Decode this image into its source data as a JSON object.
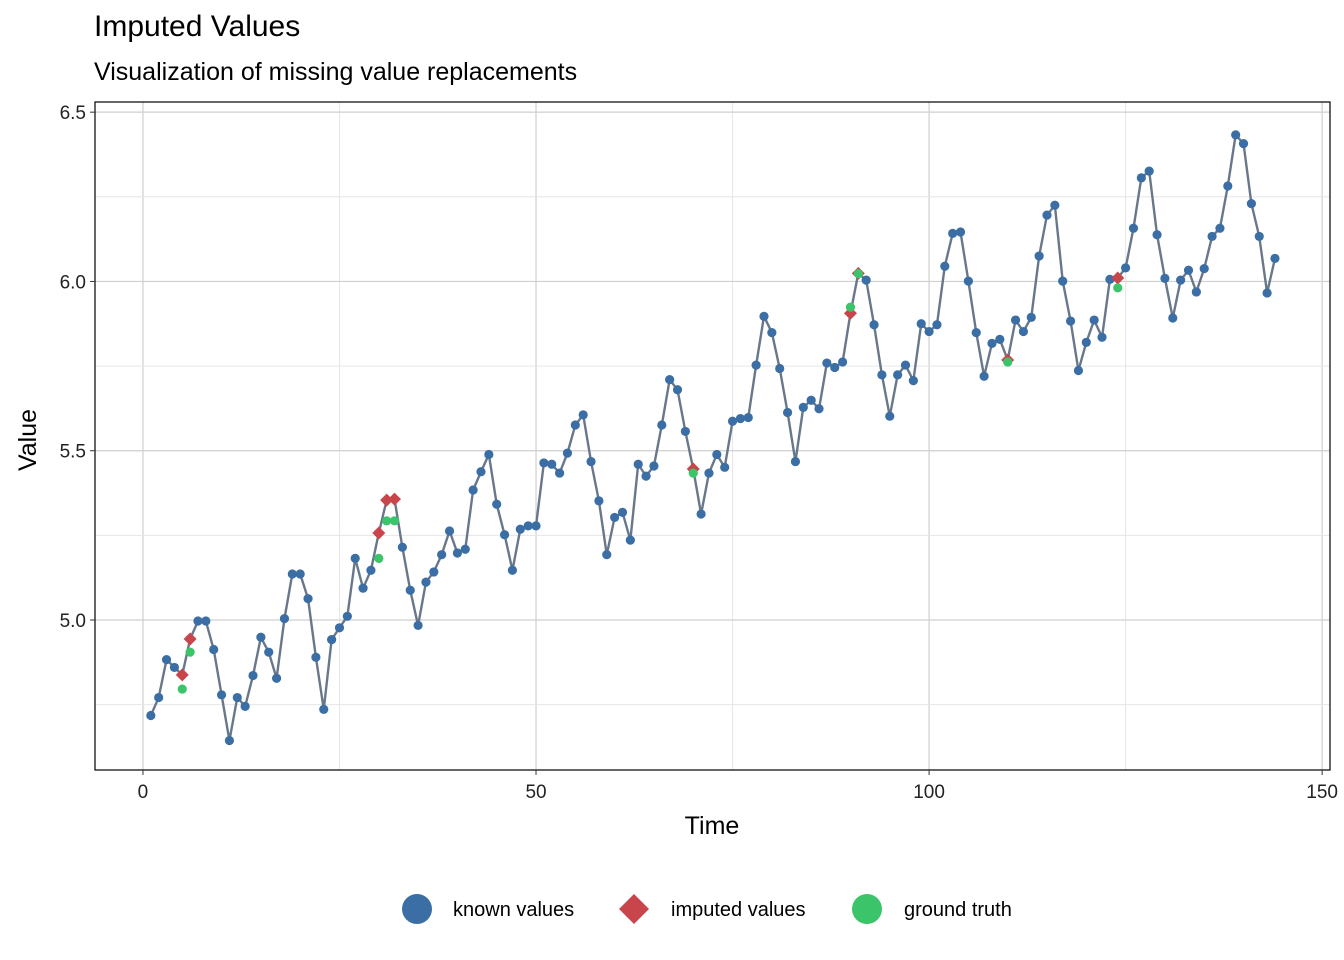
{
  "chart_data": {
    "type": "line",
    "title": "Imputed Values",
    "subtitle": "Visualization of missing value replacements",
    "xlabel": "Time",
    "ylabel": "Value",
    "xlim": [
      -6.1,
      151
    ],
    "ylim": [
      4.557,
      6.53
    ],
    "xticks": [
      0,
      50,
      100,
      150
    ],
    "yticks": [
      5.0,
      5.5,
      6.0,
      6.5
    ],
    "ytick_labels": [
      "5.0",
      "5.5",
      "6.0",
      "6.5"
    ],
    "grid": true,
    "legend_position": "bottom",
    "colors": {
      "line": "#68788a",
      "known": "#3a6ea5",
      "imputed": "#c8464b",
      "truth": "#3cc46a"
    },
    "legend": [
      "known values",
      "imputed values",
      "ground truth"
    ],
    "known_values": [
      4.718,
      4.771,
      4.883,
      4.86,
      null,
      null,
      4.997,
      4.997,
      4.913,
      4.779,
      4.644,
      4.771,
      4.745,
      4.836,
      4.949,
      4.905,
      4.828,
      5.004,
      5.136,
      5.136,
      5.063,
      4.89,
      4.736,
      4.942,
      4.977,
      5.011,
      5.182,
      5.094,
      5.147,
      null,
      null,
      null,
      5.215,
      5.088,
      4.984,
      5.112,
      5.142,
      5.193,
      5.263,
      5.198,
      5.209,
      5.384,
      5.438,
      5.489,
      5.342,
      5.252,
      5.147,
      5.268,
      5.278,
      5.278,
      5.464,
      5.46,
      5.434,
      5.493,
      5.576,
      5.606,
      5.468,
      5.352,
      5.193,
      5.303,
      5.318,
      5.236,
      5.46,
      5.425,
      5.455,
      5.576,
      5.71,
      5.68,
      5.557,
      null,
      5.313,
      5.434,
      5.489,
      5.451,
      5.587,
      5.595,
      5.598,
      5.753,
      5.897,
      5.849,
      5.743,
      5.613,
      5.468,
      5.628,
      5.649,
      5.624,
      5.759,
      5.746,
      5.762,
      null,
      null,
      6.004,
      5.872,
      5.724,
      5.602,
      5.724,
      5.753,
      5.707,
      5.875,
      5.852,
      5.872,
      6.045,
      6.142,
      6.146,
      6.001,
      5.849,
      5.72,
      5.817,
      5.829,
      null,
      5.886,
      5.852,
      5.894,
      6.075,
      6.196,
      6.225,
      6.001,
      5.883,
      5.737,
      5.82,
      5.886,
      5.835,
      6.006,
      null,
      6.04,
      6.157,
      6.306,
      6.326,
      6.138,
      6.009,
      5.892,
      6.004,
      6.033,
      5.969,
      6.038,
      6.133,
      6.157,
      6.282,
      6.433,
      6.407,
      6.23,
      6.133,
      5.966,
      6.068
    ],
    "imputed": [
      {
        "t": 5,
        "v": 4.838
      },
      {
        "t": 6,
        "v": 4.944
      },
      {
        "t": 30,
        "v": 5.257
      },
      {
        "t": 31,
        "v": 5.354
      },
      {
        "t": 32,
        "v": 5.357
      },
      {
        "t": 70,
        "v": 5.446
      },
      {
        "t": 90,
        "v": 5.906
      },
      {
        "t": 91,
        "v": 6.024
      },
      {
        "t": 110,
        "v": 5.768
      },
      {
        "t": 124,
        "v": 6.01
      }
    ],
    "ground_truth": [
      {
        "t": 5,
        "v": 4.796
      },
      {
        "t": 6,
        "v": 4.905
      },
      {
        "t": 30,
        "v": 5.182
      },
      {
        "t": 31,
        "v": 5.293
      },
      {
        "t": 32,
        "v": 5.293
      },
      {
        "t": 70,
        "v": 5.434
      },
      {
        "t": 90,
        "v": 5.924
      },
      {
        "t": 91,
        "v": 6.023
      },
      {
        "t": 110,
        "v": 5.762
      },
      {
        "t": 124,
        "v": 5.981
      }
    ]
  }
}
